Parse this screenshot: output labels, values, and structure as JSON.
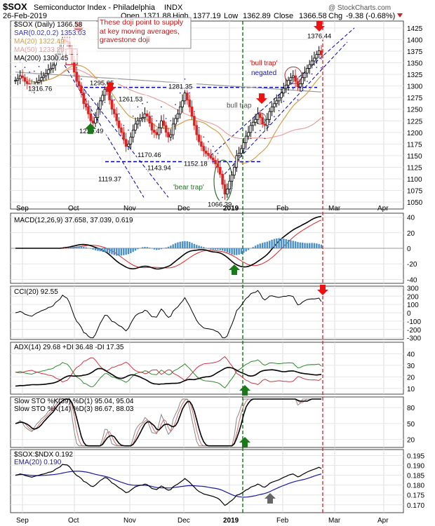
{
  "header": {
    "symbol": "$SOX",
    "name": "Semiconductor Index - Philadelphia",
    "exchange": "INDX",
    "date": "26-Feb-2019",
    "open_label": "Open",
    "open": "1371.88",
    "high_label": "High",
    "high": "1377.19",
    "low_label": "Low",
    "low": "1362.89",
    "close_label": "Close",
    "close": "1366.58",
    "chg_label": "Chg",
    "chg": "-9.38 (-0.68%)",
    "watermark": "@ StockCharts.com"
  },
  "colors": {
    "up": "#22aa22",
    "down": "#dd2222",
    "ma20": "#d4a04a",
    "ma50": "#e8a0a0",
    "ma200": "#999999",
    "sar": "#3333cc",
    "macd_hist": "#4a90c8",
    "cci_fill_pos": "#5a8a5a",
    "cci_fill_neg": "#a06a6a",
    "adx": "#000000",
    "plus_di": "#2a8a2a",
    "minus_di": "#cc3344",
    "ema_ratio": "#1a1aa0",
    "signal": "#dd2222",
    "arrow_up": "#1a7a1a",
    "arrow_down": "#ee1111",
    "arrow_grey": "#666666",
    "dash_blue": "#0000aa",
    "vline_green": "#006600",
    "vline_red": "#cc2222"
  },
  "chart_data": [
    {
      "type": "candlestick",
      "panel": "price",
      "legend": [
        {
          "label": "$SOX (Daily) 1366.58",
          "color": "#000000"
        },
        {
          "label": "SAR(0.02,0.2) 1353.03",
          "color": "#3333cc"
        },
        {
          "label": "MA(20) 1322.49",
          "color": "#d4a04a"
        },
        {
          "label": "MA(50) 1233.20",
          "color": "#e8a0a0"
        },
        {
          "label": "MA(200) 1300.45",
          "color": "#000000"
        }
      ],
      "ylim": [
        1035,
        1440
      ],
      "y_ticks": [
        1050,
        1075,
        1100,
        1125,
        1150,
        1175,
        1200,
        1225,
        1250,
        1275,
        1300,
        1325,
        1350,
        1375,
        1400,
        1425
      ],
      "x_labels": [
        "Sep",
        "Oct",
        "Nov",
        "Dec",
        "2019",
        "Feb",
        "Mar",
        "Apr"
      ],
      "level_labels": [
        "1316.76",
        "1295.05",
        "1261.53",
        "1220.49",
        "1170.46",
        "1119.37",
        "1143.94",
        "1152.18",
        "1281.35",
        "1066.39",
        "1376.44"
      ],
      "closes": [
        1312,
        1316,
        1322,
        1318,
        1310,
        1305,
        1300,
        1296,
        1302,
        1308,
        1312,
        1318,
        1322,
        1327,
        1335,
        1338,
        1345,
        1360,
        1370,
        1380,
        1400,
        1397,
        1395,
        1380,
        1355,
        1330,
        1310,
        1300,
        1285,
        1262,
        1255,
        1240,
        1225,
        1220,
        1232,
        1250,
        1268,
        1280,
        1293,
        1288,
        1270,
        1250,
        1240,
        1225,
        1210,
        1200,
        1185,
        1170,
        1175,
        1190,
        1205,
        1218,
        1225,
        1230,
        1232,
        1240,
        1235,
        1220,
        1205,
        1200,
        1195,
        1210,
        1225,
        1215,
        1200,
        1190,
        1195,
        1218,
        1230,
        1240,
        1255,
        1268,
        1285,
        1270,
        1255,
        1235,
        1215,
        1195,
        1180,
        1170,
        1160,
        1155,
        1150,
        1145,
        1140,
        1132,
        1125,
        1110,
        1088,
        1067,
        1078,
        1095,
        1108,
        1125,
        1150,
        1155,
        1165,
        1178,
        1192,
        1200,
        1215,
        1222,
        1228,
        1240,
        1232,
        1218,
        1215,
        1228,
        1245,
        1255,
        1262,
        1268,
        1275,
        1285,
        1295,
        1302,
        1312,
        1318,
        1322,
        1310,
        1298,
        1305,
        1318,
        1328,
        1338,
        1346,
        1354,
        1360,
        1368,
        1376,
        1367
      ],
      "annotations": [
        "These doji point to supply at key moving averages, gravestone doji",
        "'bull trap' negated",
        "bull trap",
        "'bear trap'"
      ]
    },
    {
      "type": "line",
      "panel": "macd",
      "legend": "MACD(12,26,9) 37.658, 37.039, 0.619",
      "ylim": [
        -45,
        45
      ],
      "y_ticks": [
        40,
        20,
        0,
        -20,
        -40
      ]
    },
    {
      "type": "line",
      "panel": "cci",
      "legend": "CCI(20) 92.55",
      "ylim": [
        -320,
        320
      ],
      "y_ticks": [
        300,
        200,
        100,
        0,
        -100,
        -200,
        -300
      ]
    },
    {
      "type": "line",
      "panel": "adx",
      "legend": [
        "ADX(14) 29.68",
        "+DI 36.48",
        "-DI 17.35"
      ],
      "ylim": [
        5,
        50
      ],
      "y_ticks": [
        40,
        30,
        20,
        10
      ]
    },
    {
      "type": "line",
      "panel": "sto",
      "legend": [
        "Slow STO %K(39) %D(1) 95.04, 95.04",
        "Slow STO %K(14) %D(3) 86.67, 88.03"
      ],
      "ylim": [
        5,
        100
      ],
      "y_ticks": [
        80,
        50,
        20
      ]
    },
    {
      "type": "line",
      "panel": "ratio",
      "legend": [
        "$SOX:$NDX 0.192",
        "EMA(20) 0.190"
      ],
      "ylim": [
        0.166,
        0.198
      ],
      "y_ticks": [
        0.195,
        0.19,
        0.185,
        0.18,
        0.175,
        0.17
      ]
    }
  ]
}
